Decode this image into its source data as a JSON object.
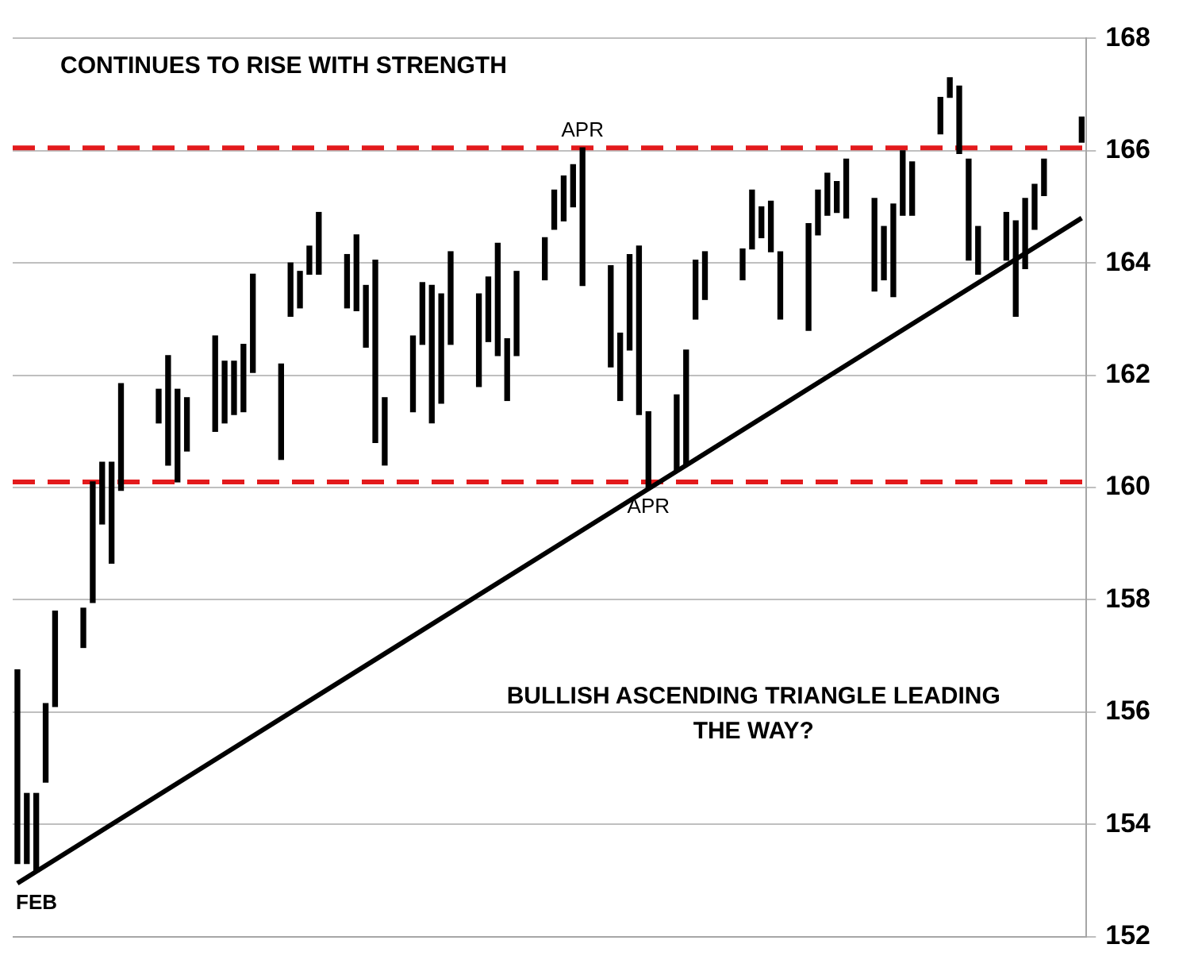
{
  "chart_data": {
    "type": "bar",
    "title": "CONTINUES TO RISE WITH STRENGTH",
    "categories": [
      null,
      null,
      null,
      null,
      null,
      null,
      null,
      null,
      null,
      null,
      null,
      null,
      null,
      null,
      null,
      null,
      null,
      null,
      null,
      null,
      null,
      null,
      null,
      null,
      null,
      null,
      null,
      null,
      null,
      null,
      null,
      null,
      null,
      null,
      null,
      null,
      null,
      null,
      null,
      null,
      null,
      null,
      null,
      null,
      null,
      null,
      null,
      null,
      null,
      null,
      null,
      null,
      null,
      null,
      null,
      null,
      null,
      null,
      null,
      null,
      null,
      null,
      null,
      null,
      null,
      null,
      null,
      null,
      null,
      null,
      null,
      null,
      null,
      null,
      null,
      null,
      null,
      null,
      null,
      null,
      null,
      null,
      null,
      null,
      null,
      null,
      null,
      null,
      null,
      null,
      null,
      null,
      null,
      null,
      null,
      null,
      null,
      null,
      null,
      null,
      null,
      null,
      null,
      null,
      null,
      null,
      null,
      null,
      null,
      null,
      null,
      null,
      null,
      null
    ],
    "series": [
      {
        "color": "#000000",
        "base": [
          153.3,
          153.3,
          153.15,
          154.75,
          156.1,
          null,
          null,
          157.15,
          157.95,
          159.35,
          158.65,
          159.95,
          null,
          null,
          null,
          161.15,
          160.4,
          160.1,
          160.65,
          null,
          null,
          161.0,
          161.15,
          161.3,
          161.35,
          162.05,
          null,
          null,
          160.5,
          163.05,
          163.2,
          163.8,
          163.8,
          null,
          null,
          163.2,
          163.15,
          162.5,
          160.8,
          160.4,
          null,
          null,
          161.35,
          162.55,
          161.15,
          161.5,
          162.55,
          null,
          null,
          161.8,
          162.6,
          162.35,
          161.55,
          162.35,
          null,
          null,
          163.7,
          164.6,
          164.75,
          165.0,
          163.6,
          null,
          null,
          162.15,
          161.55,
          162.45,
          161.3,
          160.0,
          null,
          null,
          160.3,
          160.4,
          163.0,
          163.35,
          null,
          null,
          null,
          163.7,
          164.25,
          164.45,
          164.2,
          163.0,
          null,
          null,
          162.8,
          164.5,
          164.85,
          164.9,
          164.8,
          null,
          null,
          163.5,
          163.7,
          163.4,
          164.85,
          164.85,
          null,
          null,
          166.3,
          166.95,
          165.95,
          164.05,
          163.8,
          null,
          null,
          164.05,
          163.05,
          163.9,
          164.6,
          165.2,
          null,
          null,
          null,
          166.15
        ],
        "values": [
          3.45,
          1.25,
          1.4,
          1.4,
          1.7,
          null,
          null,
          0.7,
          2.15,
          1.1,
          1.8,
          1.9,
          null,
          null,
          null,
          0.6,
          1.95,
          1.65,
          0.95,
          null,
          null,
          1.7,
          1.1,
          0.95,
          1.2,
          1.75,
          null,
          null,
          1.7,
          0.95,
          0.65,
          0.5,
          1.1,
          null,
          null,
          0.95,
          1.35,
          1.1,
          3.25,
          1.2,
          null,
          null,
          1.35,
          1.1,
          2.45,
          1.95,
          1.65,
          null,
          null,
          1.65,
          1.15,
          2.0,
          1.1,
          1.5,
          null,
          null,
          0.75,
          0.7,
          0.8,
          0.75,
          2.45,
          null,
          null,
          1.8,
          1.2,
          1.7,
          3.0,
          1.35,
          null,
          null,
          1.35,
          2.05,
          1.05,
          0.85,
          null,
          null,
          null,
          0.55,
          1.05,
          0.55,
          0.9,
          1.2,
          null,
          null,
          1.9,
          0.8,
          0.75,
          0.55,
          1.05,
          null,
          null,
          1.65,
          0.95,
          1.65,
          1.15,
          0.95,
          null,
          null,
          0.65,
          0.35,
          1.2,
          1.8,
          0.85,
          null,
          null,
          0.85,
          1.7,
          1.25,
          0.8,
          0.65,
          null,
          null,
          null,
          0.45
        ]
      },
      {
        "type": "line",
        "color": "#000000",
        "values": [
          152.95,
          null,
          null,
          null,
          null,
          null,
          null,
          null,
          null,
          null,
          null,
          null,
          null,
          null,
          null,
          null,
          null,
          null,
          null,
          null,
          null,
          null,
          null,
          null,
          null,
          null,
          null,
          null,
          null,
          null,
          null,
          null,
          null,
          null,
          null,
          null,
          null,
          null,
          null,
          null,
          null,
          null,
          null,
          null,
          null,
          null,
          null,
          null,
          null,
          null,
          null,
          null,
          null,
          null,
          null,
          null,
          null,
          null,
          null,
          null,
          null,
          null,
          null,
          null,
          null,
          null,
          null,
          null,
          null,
          null,
          null,
          null,
          null,
          null,
          null,
          null,
          null,
          null,
          null,
          null,
          null,
          null,
          null,
          null,
          null,
          null,
          null,
          null,
          null,
          null,
          null,
          null,
          null,
          null,
          null,
          null,
          null,
          null,
          null,
          null,
          null,
          null,
          null,
          null,
          null,
          null,
          null,
          null,
          null,
          null,
          null,
          null,
          null,
          164.8
        ]
      }
    ],
    "ylim": [
      152,
      168
    ],
    "yticks": [
      152,
      154,
      156,
      158,
      160,
      162,
      164,
      166,
      168
    ],
    "ref_lines": [
      {
        "axis": "y",
        "value": 166.05,
        "color": "#e31a1c",
        "line_style": "dashed"
      },
      {
        "axis": "y",
        "value": 160.1,
        "color": "#e31a1c",
        "line_style": "dashed"
      }
    ],
    "annotations": [
      {
        "text": "APR",
        "y": 166.05
      },
      {
        "text": "APR",
        "y": 160.0
      },
      {
        "text": "FEB",
        "y": 152.95
      },
      "BULLISH ASCENDING TRIANGLE LEADING THE WAY?"
    ],
    "grid": "y",
    "legend": false,
    "tick_labels": "y",
    "marker": "none"
  }
}
